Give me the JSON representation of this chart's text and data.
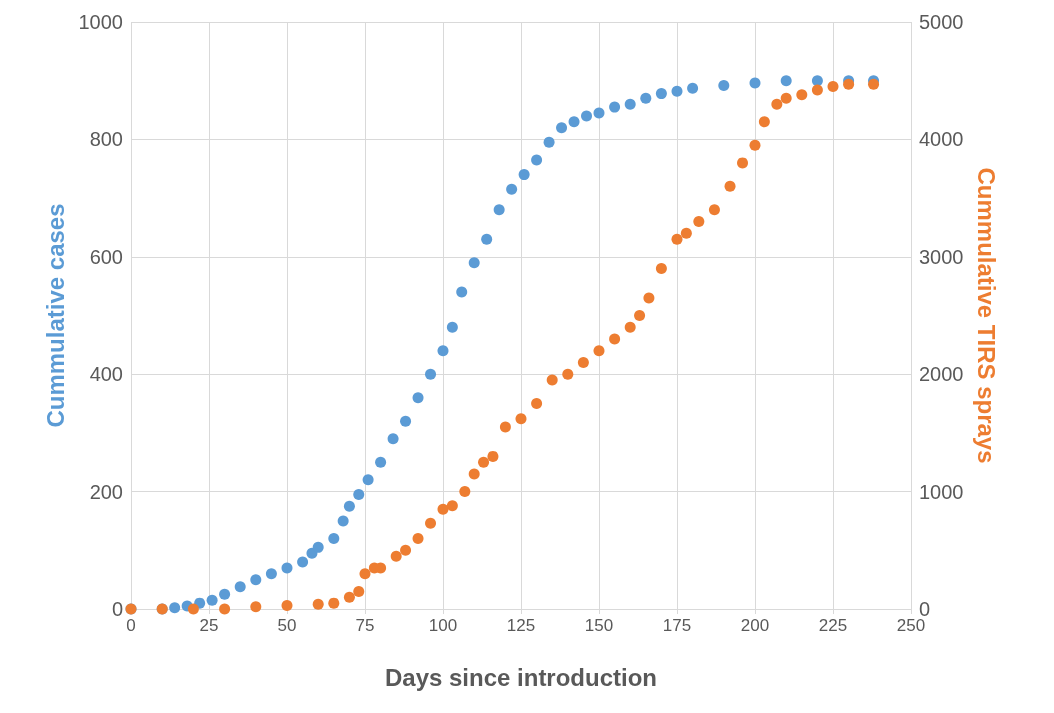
{
  "chart_data": {
    "type": "scatter",
    "xlabel": "Days since introduction",
    "ylabel": "Cummulative cases",
    "y2label": "Cummulative TIRS sprays",
    "xlim": [
      0,
      250
    ],
    "xticks": [
      0,
      25,
      50,
      75,
      100,
      125,
      150,
      175,
      200,
      225,
      250
    ],
    "ylim": [
      0,
      1000
    ],
    "yticks": [
      0,
      200,
      400,
      600,
      800,
      1000
    ],
    "y2lim": [
      0,
      5000
    ],
    "y2ticks": [
      0,
      1000,
      2000,
      3000,
      4000,
      5000
    ],
    "grid": true,
    "marker": "circle",
    "series": [
      {
        "color": "#5b9bd5",
        "x": [
          0,
          10,
          14,
          18,
          22,
          26,
          30,
          35,
          40,
          45,
          50,
          55,
          58,
          60,
          65,
          68,
          70,
          73,
          76,
          80,
          84,
          88,
          92,
          96,
          100,
          103,
          106,
          110,
          114,
          118,
          122,
          126,
          130,
          134,
          138,
          142,
          146,
          150,
          155,
          160,
          165,
          170,
          175,
          180,
          190,
          200,
          210,
          220,
          230,
          238
        ],
        "values": [
          0,
          0,
          2,
          5,
          10,
          15,
          25,
          38,
          50,
          60,
          70,
          80,
          95,
          105,
          120,
          150,
          175,
          195,
          220,
          250,
          290,
          320,
          360,
          400,
          440,
          480,
          540,
          590,
          630,
          680,
          715,
          740,
          765,
          795,
          820,
          830,
          840,
          845,
          855,
          860,
          870,
          878,
          882,
          887,
          892,
          896,
          900,
          900,
          900,
          900
        ]
      },
      {
        "color": "#ed7d31",
        "axis": "y2",
        "x": [
          0,
          10,
          20,
          30,
          40,
          50,
          60,
          65,
          70,
          73,
          75,
          78,
          80,
          85,
          88,
          92,
          96,
          100,
          103,
          107,
          110,
          113,
          116,
          120,
          125,
          130,
          135,
          140,
          145,
          150,
          155,
          160,
          163,
          166,
          170,
          175,
          178,
          182,
          187,
          192,
          196,
          200,
          203,
          207,
          210,
          215,
          220,
          225,
          230,
          238
        ],
        "values": [
          0,
          0,
          0,
          0,
          20,
          30,
          40,
          50,
          100,
          150,
          300,
          350,
          350,
          450,
          500,
          600,
          730,
          850,
          880,
          1000,
          1150,
          1250,
          1300,
          1550,
          1620,
          1750,
          1950,
          2000,
          2100,
          2200,
          2300,
          2400,
          2500,
          2650,
          2900,
          3150,
          3200,
          3300,
          3400,
          3600,
          3800,
          3950,
          4150,
          4300,
          4350,
          4380,
          4420,
          4450,
          4470,
          4470
        ]
      }
    ]
  }
}
